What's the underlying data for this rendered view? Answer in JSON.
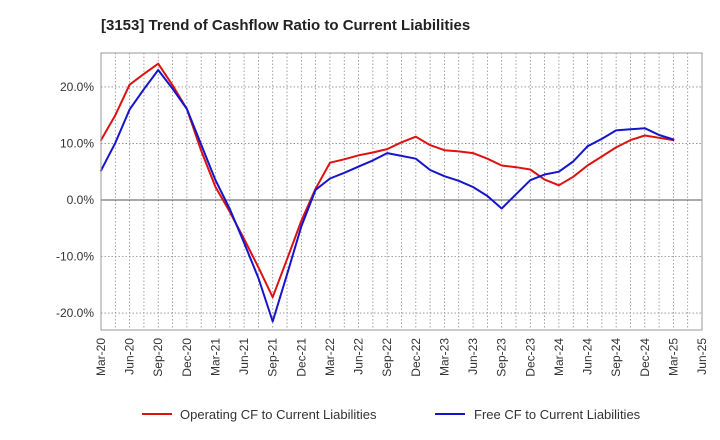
{
  "chart_data": {
    "type": "line",
    "title": "[3153]  Trend of Cashflow Ratio to Current Liabilities",
    "xlabel": "",
    "ylabel": "",
    "x_tick_labels": [
      "Mar-20",
      "Jun-20",
      "Sep-20",
      "Dec-20",
      "Mar-21",
      "Jun-21",
      "Sep-21",
      "Dec-21",
      "Mar-22",
      "Jun-22",
      "Sep-22",
      "Dec-22",
      "Mar-23",
      "Jun-23",
      "Sep-23",
      "Dec-23",
      "Mar-24",
      "Jun-24",
      "Sep-24",
      "Dec-24",
      "Mar-25",
      "Jun-25"
    ],
    "y_ticks": [
      {
        "value": -20,
        "label": "-20.0%"
      },
      {
        "value": -10,
        "label": "-10.0%"
      },
      {
        "value": 0,
        "label": "0.0%"
      },
      {
        "value": 10,
        "label": "10.0%"
      },
      {
        "value": 20,
        "label": "20.0%"
      }
    ],
    "ylim": [
      -23,
      26
    ],
    "grid": "dotted",
    "legend_position": "bottom",
    "series": [
      {
        "name": "Operating CF to Current Liabilities",
        "color": "#dd1111",
        "values": [
          10.6,
          15.0,
          20.4,
          22.3,
          24.1,
          20.3,
          16.1,
          8.7,
          2.3,
          -2.1,
          -6.9,
          -11.9,
          -17.2,
          -10.5,
          -3.7,
          2.0,
          6.6,
          7.2,
          7.9,
          8.4,
          9.0,
          10.2,
          11.2,
          9.7,
          8.8,
          8.6,
          8.3,
          7.3,
          6.1,
          5.8,
          5.4,
          3.6,
          2.6,
          4.1,
          6.1,
          7.7,
          9.3,
          10.6,
          11.4,
          11.0,
          10.6
        ]
      },
      {
        "name": "Free CF to Current Liabilities",
        "color": "#1515cc",
        "values": [
          5.2,
          10.1,
          16.0,
          19.6,
          23.0,
          19.7,
          16.1,
          9.8,
          3.5,
          -1.6,
          -7.6,
          -13.8,
          -21.5,
          -13.2,
          -4.7,
          1.8,
          3.8,
          4.8,
          5.9,
          7.0,
          8.3,
          7.8,
          7.3,
          5.3,
          4.2,
          3.4,
          2.3,
          0.7,
          -1.5,
          1.0,
          3.5,
          4.5,
          5.0,
          6.8,
          9.5,
          10.8,
          12.3,
          12.5,
          12.7,
          11.5,
          10.7
        ]
      }
    ]
  }
}
